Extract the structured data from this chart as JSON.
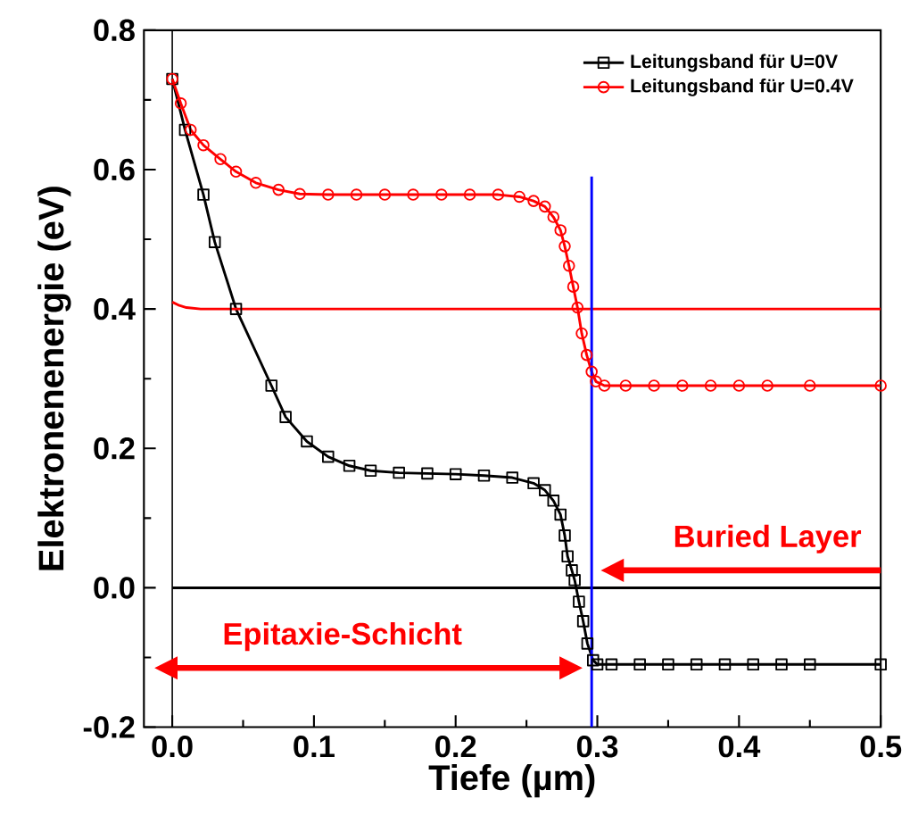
{
  "chart_data": {
    "type": "line",
    "xlabel": "Tiefe (µm)",
    "ylabel": "Elektronenenergie (eV)",
    "xlim": [
      -0.02,
      0.5
    ],
    "ylim": [
      -0.2,
      0.8
    ],
    "xticks": [
      {
        "value": 0,
        "label": "0.0"
      },
      0.1,
      0.2,
      0.3,
      0.4,
      0.5
    ],
    "yticks": [
      -0.2,
      {
        "value": 0,
        "label": "0.0"
      },
      0.2,
      0.4,
      0.6,
      0.8
    ],
    "legend": "top right",
    "grid": false,
    "series": [
      {
        "name": "Leitungsband für U=0V",
        "color": "#000000",
        "marker": "square",
        "x": [
          0,
          0.009,
          0.022,
          0.03,
          0.045,
          0.07,
          0.08,
          0.095,
          0.11,
          0.125,
          0.14,
          0.16,
          0.18,
          0.2,
          0.22,
          0.24,
          0.255,
          0.263,
          0.269,
          0.274,
          0.277,
          0.279,
          0.282,
          0.284,
          0.287,
          0.29,
          0.293,
          0.297,
          0.3,
          0.31,
          0.33,
          0.35,
          0.37,
          0.39,
          0.41,
          0.43,
          0.45,
          0.5
        ],
        "values": [
          0.73,
          0.657,
          0.564,
          0.496,
          0.4,
          0.29,
          0.245,
          0.21,
          0.188,
          0.175,
          0.168,
          0.165,
          0.164,
          0.163,
          0.161,
          0.158,
          0.15,
          0.14,
          0.125,
          0.105,
          0.075,
          0.045,
          0.025,
          0.011,
          -0.02,
          -0.048,
          -0.08,
          -0.104,
          -0.11,
          -0.11,
          -0.11,
          -0.11,
          -0.11,
          -0.11,
          -0.11,
          -0.11,
          -0.11,
          -0.11
        ]
      },
      {
        "name": "Leitungsband für U=0.4V",
        "color": "#ff0000",
        "marker": "circle",
        "x": [
          0,
          0.006,
          0.013,
          0.022,
          0.034,
          0.045,
          0.059,
          0.075,
          0.09,
          0.11,
          0.13,
          0.15,
          0.17,
          0.19,
          0.21,
          0.23,
          0.245,
          0.255,
          0.263,
          0.269,
          0.274,
          0.277,
          0.28,
          0.283,
          0.286,
          0.289,
          0.2925,
          0.296,
          0.299,
          0.305,
          0.32,
          0.34,
          0.36,
          0.38,
          0.4,
          0.42,
          0.45,
          0.5
        ],
        "values": [
          0.73,
          0.695,
          0.657,
          0.635,
          0.615,
          0.597,
          0.581,
          0.571,
          0.565,
          0.564,
          0.564,
          0.564,
          0.564,
          0.564,
          0.564,
          0.564,
          0.561,
          0.555,
          0.547,
          0.532,
          0.513,
          0.49,
          0.462,
          0.432,
          0.402,
          0.365,
          0.334,
          0.31,
          0.296,
          0.29,
          0.29,
          0.29,
          0.29,
          0.29,
          0.29,
          0.29,
          0.29,
          0.29
        ]
      },
      {
        "color": "#ff0000",
        "marker": "none",
        "x": [
          0,
          0.005,
          0.01,
          0.02,
          0.05,
          0.5
        ],
        "values": [
          0.41,
          0.405,
          0.402,
          0.4,
          0.4,
          0.4
        ]
      },
      {
        "color": "#000000",
        "marker": "none",
        "x": [
          0,
          0.5
        ],
        "values": [
          0,
          0
        ]
      },
      {
        "color": "#0000ff",
        "marker": "none",
        "x": [
          0.296,
          0.296
        ],
        "values": [
          -0.2,
          0.59
        ]
      }
    ],
    "ref_lines": [
      {
        "axis": "x",
        "value": 0,
        "color": "#000000"
      }
    ],
    "annotations": [
      "Epitaxie-Schicht",
      "Buried Layer"
    ]
  }
}
